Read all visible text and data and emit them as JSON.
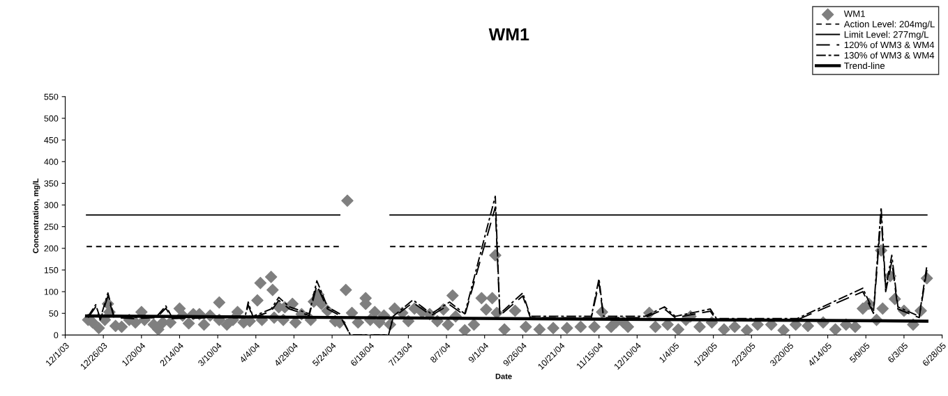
{
  "chart_data": {
    "type": "line",
    "title": "WM1",
    "xlabel": "Date",
    "ylabel": "Concentration, mg/L",
    "xlim": [
      "2003-12-01",
      "2005-06-28"
    ],
    "ylim": [
      0,
      550
    ],
    "yticks": [
      0,
      50,
      100,
      150,
      200,
      250,
      300,
      350,
      400,
      450,
      500,
      550
    ],
    "xticks": [
      {
        "value": "2003-12-01",
        "label": "12/1/03"
      },
      {
        "value": "2003-12-26",
        "label": "12/26/03"
      },
      {
        "value": "2004-01-20",
        "label": "1/20/04"
      },
      {
        "value": "2004-02-14",
        "label": "2/14/04"
      },
      {
        "value": "2004-03-10",
        "label": "3/10/04"
      },
      {
        "value": "2004-04-04",
        "label": "4/4/04"
      },
      {
        "value": "2004-04-29",
        "label": "4/29/04"
      },
      {
        "value": "2004-05-24",
        "label": "5/24/04"
      },
      {
        "value": "2004-06-18",
        "label": "6/18/04"
      },
      {
        "value": "2004-07-13",
        "label": "7/13/04"
      },
      {
        "value": "2004-08-07",
        "label": "8/7/04"
      },
      {
        "value": "2004-09-01",
        "label": "9/1/04"
      },
      {
        "value": "2004-09-26",
        "label": "9/26/04"
      },
      {
        "value": "2004-10-21",
        "label": "10/21/04"
      },
      {
        "value": "2004-11-15",
        "label": "11/15/04"
      },
      {
        "value": "2004-12-10",
        "label": "12/10/04"
      },
      {
        "value": "2005-01-04",
        "label": "1/4/05"
      },
      {
        "value": "2005-01-29",
        "label": "1/29/05"
      },
      {
        "value": "2005-02-23",
        "label": "2/23/05"
      },
      {
        "value": "2005-03-20",
        "label": "3/20/05"
      },
      {
        "value": "2005-04-14",
        "label": "4/14/05"
      },
      {
        "value": "2005-05-09",
        "label": "5/9/05"
      },
      {
        "value": "2005-06-03",
        "label": "6/3/05"
      },
      {
        "value": "2005-06-28",
        "label": "6/28/05"
      }
    ],
    "grid": false,
    "legend": "top right",
    "series": [
      {
        "name": "WM1",
        "type": "scatter",
        "marker": "diamond",
        "color": "#7f7f7f",
        "x": [
          "2003-12-16",
          "2003-12-19",
          "2003-12-23",
          "2003-12-27",
          "2003-12-29",
          "2003-12-30",
          "2004-01-03",
          "2004-01-07",
          "2004-01-12",
          "2004-01-16",
          "2004-01-20",
          "2004-01-22",
          "2004-01-28",
          "2004-01-31",
          "2004-02-03",
          "2004-02-08",
          "2004-02-14",
          "2004-02-16",
          "2004-02-20",
          "2004-02-23",
          "2004-02-27",
          "2004-03-01",
          "2004-03-05",
          "2004-03-11",
          "2004-03-11",
          "2004-03-16",
          "2004-03-20",
          "2004-03-23",
          "2004-03-27",
          "2004-03-31",
          "2004-04-05",
          "2004-04-07",
          "2004-04-08",
          "2004-04-14",
          "2004-04-15",
          "2004-04-16",
          "2004-04-19",
          "2004-04-22",
          "2004-04-23",
          "2004-04-28",
          "2004-04-30",
          "2004-05-04",
          "2004-05-10",
          "2004-05-12",
          "2004-05-15",
          "2004-05-17",
          "2004-05-21",
          "2004-05-26",
          "2004-05-29",
          "2004-06-02",
          "2004-06-03",
          "2004-06-06",
          "2004-06-10",
          "2004-06-15",
          "2004-06-15",
          "2004-06-18",
          "2004-06-21",
          "2004-06-24",
          "2004-06-27",
          "2004-07-01",
          "2004-07-04",
          "2004-07-09",
          "2004-07-13",
          "2004-07-17",
          "2004-07-22",
          "2004-07-27",
          "2004-08-01",
          "2004-08-05",
          "2004-08-08",
          "2004-08-11",
          "2004-08-13",
          "2004-08-19",
          "2004-08-25",
          "2004-08-30",
          "2004-09-02",
          "2004-09-06",
          "2004-09-08",
          "2004-09-09",
          "2004-09-14",
          "2004-09-21",
          "2004-09-28",
          "2004-10-07",
          "2004-10-16",
          "2004-10-25",
          "2004-11-03",
          "2004-11-12",
          "2004-11-17",
          "2004-11-23",
          "2004-11-26",
          "2004-12-01",
          "2004-12-04",
          "2004-12-18",
          "2004-12-22",
          "2004-12-30",
          "2005-01-06",
          "2005-01-11",
          "2005-01-14",
          "2005-01-20",
          "2005-01-28",
          "2005-02-05",
          "2005-02-12",
          "2005-02-20",
          "2005-02-27",
          "2005-03-08",
          "2005-03-16",
          "2005-03-24",
          "2005-04-01",
          "2005-04-11",
          "2005-04-19",
          "2005-04-26",
          "2005-05-02",
          "2005-05-07",
          "2005-05-11",
          "2005-05-16",
          "2005-05-19",
          "2005-05-20",
          "2005-05-25",
          "2005-05-28",
          "2005-06-03",
          "2005-06-09",
          "2005-06-14",
          "2005-06-18"
        ],
        "values": [
          35,
          29,
          16,
          35,
          72,
          53,
          21,
          19,
          35,
          29,
          53,
          35,
          24,
          13,
          29,
          29,
          61,
          45,
          27,
          48,
          48,
          24,
          45,
          75,
          35,
          24,
          35,
          53,
          29,
          32,
          80,
          120,
          35,
          134,
          104,
          40,
          64,
          35,
          64,
          72,
          29,
          48,
          35,
          77,
          93,
          72,
          56,
          32,
          29,
          104,
          310,
          51,
          29,
          85,
          72,
          35,
          53,
          29,
          45,
          24,
          61,
          51,
          32,
          61,
          53,
          48,
          32,
          59,
          24,
          91,
          43,
          11,
          24,
          85,
          59,
          85,
          184,
          51,
          13,
          56,
          19,
          13,
          16,
          16,
          19,
          19,
          53,
          19,
          29,
          29,
          19,
          51,
          19,
          24,
          13,
          35,
          43,
          19,
          29,
          13,
          19,
          11,
          24,
          24,
          11,
          24,
          21,
          29,
          13,
          24,
          19,
          61,
          72,
          35,
          195,
          61,
          136,
          83,
          56,
          24,
          56,
          131
        ]
      },
      {
        "name": "Action Level: 204mg/L",
        "line_style": "dashed",
        "color": "#000000",
        "x": [
          "2003-12-15",
          "2004-05-29",
          "2004-06-15",
          "2004-07-01",
          "2005-06-18"
        ],
        "values": [
          204,
          204,
          null,
          204,
          204
        ]
      },
      {
        "name": "Limit Level: 277mg/L",
        "line_style": "solid",
        "color": "#000000",
        "x": [
          "2003-12-15",
          "2004-05-29",
          "2004-06-15",
          "2004-07-01",
          "2005-06-18"
        ],
        "values": [
          277,
          277,
          null,
          277,
          277
        ]
      },
      {
        "name": "120% of WM3 & WM4",
        "line_style": "longdash",
        "color": "#000000",
        "x": [
          "2003-12-16",
          "2003-12-21",
          "2003-12-24",
          "2003-12-29",
          "2004-01-02",
          "2004-01-15",
          "2004-01-30",
          "2004-02-05",
          "2004-02-09",
          "2004-03-10",
          "2004-03-28",
          "2004-03-30",
          "2004-04-02",
          "2004-04-14",
          "2004-04-19",
          "2004-04-26",
          "2004-05-09",
          "2004-05-14",
          "2004-05-21",
          "2004-05-29",
          "2004-06-05",
          "2004-06-30",
          "2004-07-03",
          "2004-07-16",
          "2004-07-28",
          "2004-08-09",
          "2004-08-19",
          "2004-09-08",
          "2004-09-11",
          "2004-09-26",
          "2004-10-01",
          "2004-11-10",
          "2004-11-15",
          "2004-11-18",
          "2004-12-15",
          "2004-12-28",
          "2005-01-04",
          "2005-01-27",
          "2005-01-31",
          "2005-03-25",
          "2005-05-07",
          "2005-05-14",
          "2005-05-19",
          "2005-05-22",
          "2005-05-26",
          "2005-05-30",
          "2005-06-13",
          "2005-06-18"
        ],
        "values": [
          40,
          65,
          35,
          90,
          40,
          38,
          40,
          62,
          38,
          40,
          40,
          70,
          40,
          55,
          80,
          60,
          45,
          115,
          60,
          45,
          0,
          0,
          40,
          75,
          45,
          70,
          45,
          295,
          45,
          90,
          40,
          40,
          120,
          40,
          40,
          60,
          40,
          55,
          35,
          35,
          100,
          50,
          275,
          100,
          170,
          60,
          40,
          150
        ]
      },
      {
        "name": "130% of WM3 & WM4",
        "line_style": "dashdot",
        "color": "#000000",
        "x": [
          "2003-12-16",
          "2003-12-21",
          "2003-12-24",
          "2003-12-29",
          "2004-01-02",
          "2004-01-15",
          "2004-01-30",
          "2004-02-05",
          "2004-02-09",
          "2004-03-10",
          "2004-03-28",
          "2004-03-30",
          "2004-04-02",
          "2004-04-14",
          "2004-04-19",
          "2004-04-26",
          "2004-05-09",
          "2004-05-14",
          "2004-05-21",
          "2004-05-29",
          "2004-06-05",
          "2004-06-30",
          "2004-07-03",
          "2004-07-16",
          "2004-07-28",
          "2004-08-09",
          "2004-08-19",
          "2004-09-08",
          "2004-09-11",
          "2004-09-26",
          "2004-10-01",
          "2004-11-10",
          "2004-11-15",
          "2004-11-18",
          "2004-12-15",
          "2004-12-28",
          "2005-01-04",
          "2005-01-27",
          "2005-01-31",
          "2005-03-25",
          "2005-05-07",
          "2005-05-14",
          "2005-05-19",
          "2005-05-22",
          "2005-05-26",
          "2005-05-30",
          "2005-06-13",
          "2005-06-18"
        ],
        "values": [
          43,
          70,
          38,
          97,
          43,
          41,
          43,
          67,
          41,
          43,
          43,
          76,
          43,
          60,
          87,
          65,
          49,
          125,
          65,
          49,
          0,
          0,
          43,
          81,
          49,
          76,
          49,
          320,
          49,
          97,
          43,
          43,
          130,
          43,
          43,
          65,
          43,
          60,
          38,
          38,
          108,
          54,
          295,
          108,
          184,
          65,
          43,
          160
        ]
      },
      {
        "name": "Trend-line",
        "line_style": "solid",
        "color": "#000000",
        "x": [
          "2003-12-15",
          "2005-06-18"
        ],
        "values": [
          44,
          32
        ]
      }
    ]
  }
}
